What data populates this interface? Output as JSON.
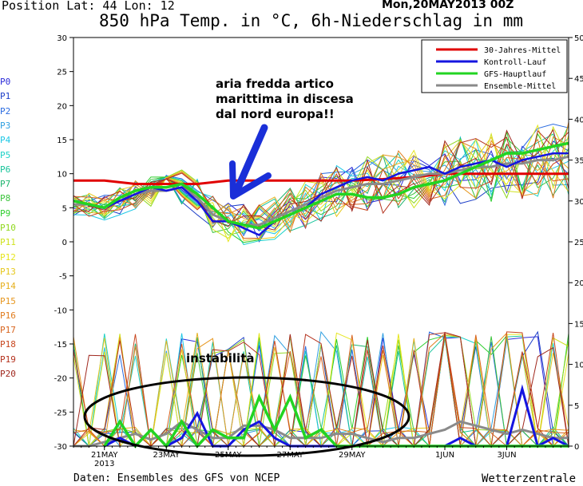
{
  "header": {
    "position": "Position  Lat: 44 Lon: 12",
    "title": "850 hPa Temp. in °C, 6h-Niederschlag in mm",
    "date": "Mon,20MAY2013 00Z"
  },
  "footer": {
    "source": "Daten: Ensembles des GFS von NCEP",
    "brand": "Wetterzentrale"
  },
  "annotations": {
    "arrow_text": "aria fredda artico marittima in discesa dal nord europa!!",
    "instability_text": "instabilità"
  },
  "members": [
    {
      "label": "P0",
      "color": "#2b2bd8"
    },
    {
      "label": "P1",
      "color": "#1e3fc8"
    },
    {
      "label": "P2",
      "color": "#2a6be0"
    },
    {
      "label": "P3",
      "color": "#2f9fe0"
    },
    {
      "label": "P4",
      "color": "#1ec8e6"
    },
    {
      "label": "P5",
      "color": "#1ed2c8"
    },
    {
      "label": "P6",
      "color": "#17c49a"
    },
    {
      "label": "P7",
      "color": "#1eb46e"
    },
    {
      "label": "P8",
      "color": "#3cc43c"
    },
    {
      "label": "P9",
      "color": "#2fcf2f"
    },
    {
      "label": "P10",
      "color": "#8fd81e"
    },
    {
      "label": "P11",
      "color": "#cfe21e"
    },
    {
      "label": "P12",
      "color": "#e6e61e"
    },
    {
      "label": "P13",
      "color": "#e6c81e"
    },
    {
      "label": "P14",
      "color": "#e6b01e"
    },
    {
      "label": "P15",
      "color": "#e6961e"
    },
    {
      "label": "P16",
      "color": "#e07c1e"
    },
    {
      "label": "P17",
      "color": "#d8641e"
    },
    {
      "label": "P18",
      "color": "#c8461e"
    },
    {
      "label": "P19",
      "color": "#b4321e"
    },
    {
      "label": "P20",
      "color": "#a0281e"
    }
  ],
  "chart_data": {
    "type": "line",
    "x_unit": "days since 20 MAY 2013 00Z",
    "xlim": [
      0,
      16
    ],
    "ylim_left": [
      -30,
      30
    ],
    "ylim_right": [
      0,
      50
    ],
    "yticks_left": [
      30,
      25,
      20,
      15,
      10,
      5,
      0,
      -5,
      -10,
      -15,
      -20,
      -25,
      -30
    ],
    "yticks_right": [
      50,
      45,
      40,
      35,
      30,
      25,
      20,
      15,
      10,
      5,
      0
    ],
    "xticks": [
      {
        "x": 1,
        "label": "21MAY",
        "sub": "2013"
      },
      {
        "x": 3,
        "label": "23MAY"
      },
      {
        "x": 5,
        "label": "25MAY"
      },
      {
        "x": 7,
        "label": "27MAY"
      },
      {
        "x": 9,
        "label": "29MAY"
      },
      {
        "x": 12,
        "label": "1JUN"
      },
      {
        "x": 14,
        "label": "3JUN"
      }
    ],
    "legend": [
      {
        "name": "30-Jahres-Mittel",
        "color": "#e00000"
      },
      {
        "name": "Kontroll-Lauf",
        "color": "#1515e0"
      },
      {
        "name": "GFS-Hauptlauf",
        "color": "#22d422"
      },
      {
        "name": "Ensemble-Mittel",
        "color": "#8a8a8a"
      }
    ],
    "climate_mean": {
      "x": [
        0,
        1,
        2,
        3,
        4,
        5,
        6,
        7,
        8,
        9,
        10,
        11,
        12,
        13,
        14,
        15,
        16
      ],
      "y": [
        9,
        9,
        8.5,
        8.5,
        8.5,
        9,
        9,
        9,
        9,
        9,
        9.2,
        9.5,
        10,
        10,
        10,
        10,
        10
      ]
    },
    "control_run": {
      "x": [
        0,
        0.5,
        1,
        1.5,
        2,
        2.5,
        3,
        3.5,
        4,
        4.5,
        5,
        5.5,
        6,
        6.5,
        7,
        7.5,
        8,
        8.5,
        9,
        9.5,
        10,
        10.5,
        11,
        11.5,
        12,
        12.5,
        13,
        13.5,
        14,
        14.5,
        15,
        15.5,
        16
      ],
      "y": [
        6,
        5.5,
        5,
        6,
        7,
        8,
        7.5,
        8,
        6,
        3,
        3,
        2,
        1,
        3,
        4,
        5,
        7,
        8,
        9,
        9.5,
        9,
        10,
        10.5,
        11,
        10,
        11,
        11.5,
        12,
        11,
        12,
        12.5,
        13,
        13
      ]
    },
    "gfs_main": {
      "x": [
        0,
        0.5,
        1,
        1.5,
        2,
        2.5,
        3,
        3.5,
        4,
        4.5,
        5,
        5.5,
        6,
        6.5,
        7,
        7.5,
        8,
        8.5,
        9,
        9.5,
        10,
        10.5,
        11,
        11.5,
        12,
        12.5,
        13,
        13.5,
        14,
        14.5,
        15,
        15.5,
        16
      ],
      "y": [
        6,
        5.5,
        5,
        6.5,
        7.5,
        8,
        8,
        8.5,
        7,
        5,
        3,
        2.5,
        2,
        3,
        4,
        5,
        6,
        7,
        7,
        6.5,
        6.5,
        7,
        8,
        8.5,
        9,
        10,
        11,
        12,
        13,
        13,
        13.5,
        14,
        14.5
      ]
    },
    "ensemble_mean": {
      "x": [
        0,
        0.5,
        1,
        1.5,
        2,
        2.5,
        3,
        3.5,
        4,
        4.5,
        5,
        5.5,
        6,
        6.5,
        7,
        7.5,
        8,
        8.5,
        9,
        9.5,
        10,
        10.5,
        11,
        11.5,
        12,
        12.5,
        13,
        13.5,
        14,
        14.5,
        15,
        15.5,
        16
      ],
      "y": [
        5.5,
        5.5,
        5,
        6,
        7,
        7.5,
        7.5,
        8,
        6.5,
        4,
        3,
        2.5,
        2.5,
        3.5,
        4.5,
        5.5,
        6.5,
        7.5,
        8,
        8.5,
        8.5,
        9,
        9.5,
        10,
        10,
        10.5,
        11,
        11,
        11.5,
        11.5,
        12,
        12,
        12.5
      ]
    },
    "precip_gfs": {
      "x": [
        1,
        1.5,
        2,
        2.5,
        3,
        3.5,
        4,
        4.5,
        5,
        5.5,
        6,
        6.5,
        7,
        7.5,
        8,
        8.5,
        9,
        9.5,
        10,
        10.5,
        11,
        11.5,
        12,
        12.5,
        13,
        13.5,
        14,
        14.5,
        15,
        15.5,
        16
      ],
      "y": [
        0,
        3,
        0,
        2,
        0,
        3,
        0,
        2,
        1,
        1,
        6,
        2,
        6,
        1,
        2,
        0,
        0,
        0,
        0,
        0,
        0,
        0,
        0,
        0,
        0,
        0,
        0,
        0,
        0,
        0,
        0
      ]
    },
    "precip_control": {
      "x": [
        1,
        1.5,
        2,
        2.5,
        3,
        3.5,
        4,
        4.5,
        5,
        5.5,
        6,
        6.5,
        7,
        7.5,
        8,
        8.5,
        9,
        9.5,
        10,
        10.5,
        11,
        11.5,
        12,
        12.5,
        13,
        13.5,
        14,
        14.5,
        15,
        15.5,
        16
      ],
      "y": [
        0,
        1,
        0,
        2,
        0,
        1,
        4,
        0,
        0,
        2,
        3,
        1,
        0,
        0,
        0,
        0,
        0,
        0,
        0,
        0,
        0,
        0,
        0,
        1,
        0,
        0,
        0,
        7,
        0,
        1,
        0
      ]
    },
    "precip_mean": {
      "x": [
        0,
        0.5,
        1,
        1.5,
        2,
        2.5,
        3,
        3.5,
        4,
        4.5,
        5,
        5.5,
        6,
        6.5,
        7,
        7.5,
        8,
        8.5,
        9,
        9.5,
        10,
        10.5,
        11,
        11.5,
        12,
        12.5,
        13,
        13.5,
        14,
        14.5,
        15,
        15.5,
        16
      ],
      "y": [
        0,
        0,
        0.5,
        1,
        1.5,
        0.8,
        1.5,
        3,
        2,
        1,
        1,
        2.5,
        2.5,
        2,
        1,
        1,
        1,
        1.5,
        1.5,
        1,
        0.5,
        1,
        1,
        1.5,
        2,
        3,
        2.5,
        2,
        1.5,
        2,
        1.5,
        1,
        1
      ]
    }
  }
}
